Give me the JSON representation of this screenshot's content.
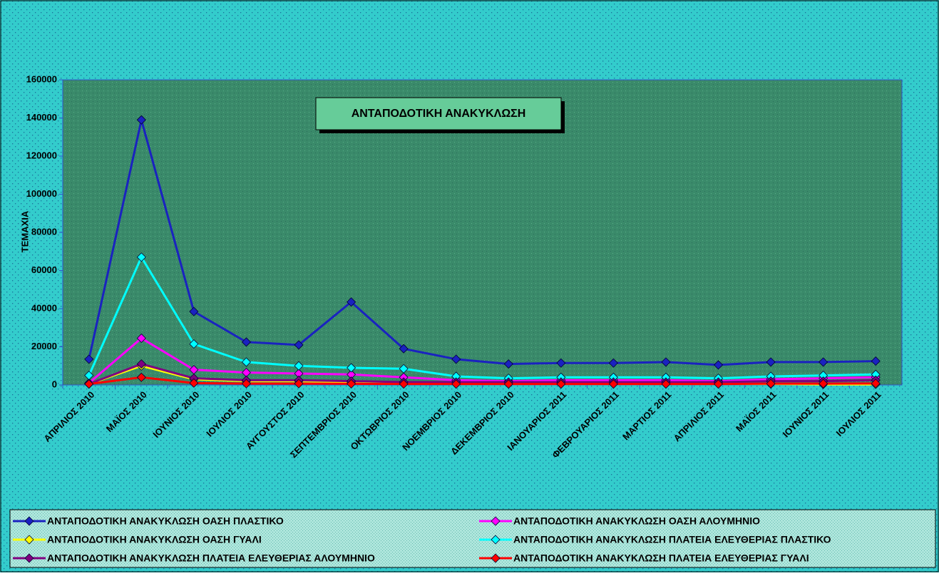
{
  "chart_data": {
    "type": "line",
    "title": "ΑΝΤΑΠΟΔΟΤΙΚΗ ΑΝΑΚΥΚΛΩΣΗ",
    "y_label": "ΤΕΜΑΧΙΑ",
    "categories": [
      "ΑΠΡΙΛΙΟΣ 2010",
      "ΜΑΪΟΣ 2010",
      "ΙΟΥΝΙΟΣ 2010",
      "ΙΟΥΛΙΟΣ 2010",
      "ΑΥΓΟΥΣΤΟΣ 2010",
      "ΣΕΠΤΕΜΒΡΙΟΣ 2010",
      "ΟΚΤΩΒΡΙΟΣ 2010",
      "ΝΟΕΜΒΡΙΟΣ 2010",
      "ΔΕΚΕΜΒΡΙΟΣ 2010",
      "ΙΑΝΟΥΑΡΙΟΣ 2011",
      "ΦΕΒΡΟΥΑΡΙΟΣ 2011",
      "ΜΑΡΤΙΟΣ 2011",
      "ΑΠΡΙΛΙΟΣ 2011",
      "ΜΑΪΟΣ 2011",
      "ΙΟΥΝΙΟΣ 2011",
      "ΙΟΥΛΙΟΣ 2011"
    ],
    "series": [
      {
        "name": "ΑΝΤΑΠΟΔΟΤΙΚΗ ΑΝΑΚΥΚΛΩΣΗ ΟΑΣΗ ΠΛΑΣΤΙΚΟ",
        "color": "#1a22c0",
        "values": [
          13500,
          139000,
          38500,
          22500,
          21000,
          43500,
          19000,
          13500,
          11000,
          11500,
          11500,
          12000,
          10500,
          12000,
          12000,
          12500
        ]
      },
      {
        "name": "ΑΝΤΑΠΟΔΟΤΙΚΗ ΑΝΑΚΥΚΛΩΣΗ ΟΑΣΗ ΑΛΟΥΜΗΝΙΟ",
        "color": "#ff00ff",
        "values": [
          1000,
          24500,
          8000,
          6500,
          6000,
          5500,
          4000,
          2500,
          2000,
          2500,
          2500,
          2500,
          2000,
          3000,
          3500,
          4000
        ]
      },
      {
        "name": "ΑΝΤΑΠΟΔΟΤΙΚΗ ΑΝΑΚΥΚΛΩΣΗ ΟΑΣΗ ΓΥΑΛΙ",
        "color": "#ffff00",
        "values": [
          500,
          10000,
          3000,
          2000,
          2000,
          1500,
          1000,
          500,
          500,
          500,
          500,
          500,
          500,
          500,
          300,
          300
        ]
      },
      {
        "name": "ΑΝΤΑΠΟΔΟΤΙΚΗ ΑΝΑΚΥΚΛΩΣΗ ΠΛΑΤΕΙΑ ΕΛΕΥΘΕΡΙΑΣ ΠΛΑΣΤΙΚΟ",
        "color": "#00ffff",
        "values": [
          5000,
          67000,
          21500,
          12000,
          10000,
          9000,
          8500,
          4500,
          3500,
          4000,
          4000,
          4000,
          3500,
          4500,
          5000,
          5500
        ]
      },
      {
        "name": "ΑΝΤΑΠΟΔΟΤΙΚΗ ΑΝΑΚΥΚΛΩΣΗ ΠΛΑΤΕΙΑ ΕΛΕΥΘΕΡΙΑΣ ΑΛΟΥΜΗΝΙΟ",
        "color": "#800080",
        "values": [
          500,
          11000,
          3500,
          2500,
          2500,
          2000,
          1500,
          1500,
          1500,
          1500,
          1500,
          1500,
          1500,
          2000,
          2000,
          2500
        ]
      },
      {
        "name": "ΑΝΤΑΠΟΔΟΤΙΚΗ ΑΝΑΚΥΚΛΩΣΗ ΠΛΑΤΕΙΑ ΕΛΕΥΘΕΡΙΑΣ ΓΥΑΛΙ",
        "color": "#ff0000",
        "values": [
          500,
          4000,
          1000,
          700,
          700,
          600,
          500,
          500,
          500,
          500,
          500,
          500,
          500,
          700,
          700,
          800
        ]
      }
    ],
    "ylim": [
      0,
      160000
    ],
    "yticks": [
      0,
      20000,
      40000,
      60000,
      80000,
      100000,
      120000,
      140000,
      160000
    ],
    "grid": false,
    "legend": "bottom"
  }
}
